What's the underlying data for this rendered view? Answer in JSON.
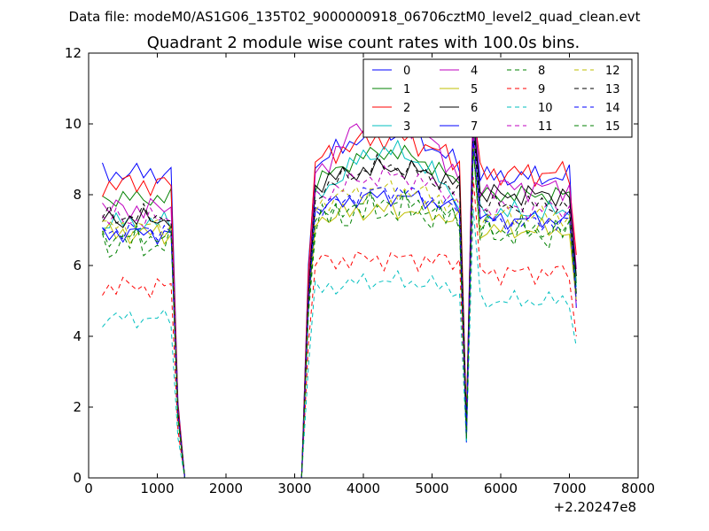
{
  "suptitle": "Data file: modeM0/AS1G06_135T02_9000000918_06706cztM0_level2_quad_clean.evt",
  "chart_data": {
    "type": "line",
    "title": "Quadrant 2 module wise count rates with 100.0s bins.",
    "xlabel": "",
    "ylabel": "",
    "x_offset_label": "+2.20247e8",
    "xlim": [
      0,
      8000
    ],
    "ylim": [
      0,
      12
    ],
    "x_ticks": [
      0,
      1000,
      2000,
      3000,
      4000,
      5000,
      6000,
      7000,
      8000
    ],
    "x_tick_labels": [
      "0",
      "1000",
      "2000",
      "3000",
      "4000",
      "5000",
      "6000",
      "7000",
      "8000"
    ],
    "y_ticks": [
      0,
      2,
      4,
      6,
      8,
      10,
      12
    ],
    "y_tick_labels": [
      "0",
      "2",
      "4",
      "6",
      "8",
      "10",
      "12"
    ],
    "grid": false,
    "legend_position": "top-right",
    "legend_columns": 4,
    "segments": [
      {
        "start": 200,
        "end": 1200,
        "step": 100
      },
      {
        "start": 1300,
        "end": 1400,
        "step": 100
      },
      {
        "start": 1400,
        "end": 3100,
        "step": 100
      },
      {
        "start": 3200,
        "end": 3200,
        "step": 100
      },
      {
        "start": 3300,
        "end": 5400,
        "step": 100
      },
      {
        "start": 5500,
        "end": 5500,
        "step": 100
      },
      {
        "start": 5600,
        "end": 7100,
        "step": 100
      }
    ],
    "series": [
      {
        "name": "0",
        "color": "#0000ff",
        "dash": "solid",
        "base": 8.6,
        "peak": 9.9,
        "pre_dip": 8.8,
        "jitter": 0.35,
        "post_drop": 4.8,
        "spike": 10.6,
        "dip": 1.4
      },
      {
        "name": "1",
        "color": "#008000",
        "dash": "solid",
        "base": 7.9,
        "peak": 9.3,
        "pre_dip": 8.3,
        "jitter": 0.3,
        "post_drop": 5.5,
        "spike": 10.4,
        "dip": 1.6
      },
      {
        "name": "2",
        "color": "#ff0000",
        "dash": "solid",
        "base": 8.3,
        "peak": 9.7,
        "pre_dip": 8.9,
        "jitter": 0.4,
        "post_drop": 6.3,
        "spike": 10.5,
        "dip": 1.7
      },
      {
        "name": "3",
        "color": "#00bfbf",
        "dash": "solid",
        "base": 7.2,
        "peak": 9.4,
        "pre_dip": 7.8,
        "jitter": 0.35,
        "post_drop": 5.4,
        "spike": 10.2,
        "dip": 1.4
      },
      {
        "name": "4",
        "color": "#bf00bf",
        "dash": "solid",
        "base": 7.6,
        "peak": 10.4,
        "pre_dip": 8.5,
        "jitter": 0.4,
        "post_drop": 5.9,
        "spike": 11.0,
        "dip": 1.5
      },
      {
        "name": "5",
        "color": "#bfbf00",
        "dash": "solid",
        "base": 6.9,
        "peak": 7.6,
        "pre_dip": 7.3,
        "jitter": 0.35,
        "post_drop": 5.0,
        "spike": 9.4,
        "dip": 1.2
      },
      {
        "name": "6",
        "color": "#000000",
        "dash": "solid",
        "base": 7.3,
        "peak": 8.8,
        "pre_dip": 8.3,
        "jitter": 0.35,
        "post_drop": 5.7,
        "spike": 10.1,
        "dip": 1.5
      },
      {
        "name": "7",
        "color": "#0000ff",
        "dash": "solid",
        "base": 6.9,
        "peak": 8.0,
        "pre_dip": 7.6,
        "jitter": 0.3,
        "post_drop": 5.2,
        "spike": 9.8,
        "dip": 1.0
      },
      {
        "name": "8",
        "color": "#008000",
        "dash": "dashed",
        "base": 6.6,
        "peak": 7.6,
        "pre_dip": 7.2,
        "jitter": 0.6,
        "post_drop": 5.2,
        "spike": 9.3,
        "dip": 1.3
      },
      {
        "name": "9",
        "color": "#ff0000",
        "dash": "dashed",
        "base": 5.4,
        "peak": 6.2,
        "pre_dip": 6.1,
        "jitter": 0.35,
        "post_drop": 4.0,
        "spike": 8.5,
        "dip": 1.1
      },
      {
        "name": "10",
        "color": "#00bfbf",
        "dash": "dashed",
        "base": 4.5,
        "peak": 5.6,
        "pre_dip": 5.3,
        "jitter": 0.3,
        "post_drop": 3.7,
        "spike": 7.6,
        "dip": 1.0
      },
      {
        "name": "11",
        "color": "#bf00bf",
        "dash": "dashed",
        "base": 7.3,
        "peak": 8.6,
        "pre_dip": 7.9,
        "jitter": 0.35,
        "post_drop": 4.8,
        "spike": 9.7,
        "dip": 1.3
      },
      {
        "name": "12",
        "color": "#bfbf00",
        "dash": "dashed",
        "base": 7.1,
        "peak": 8.2,
        "pre_dip": 7.7,
        "jitter": 0.35,
        "post_drop": 5.0,
        "spike": 9.5,
        "dip": 1.2
      },
      {
        "name": "13",
        "color": "#000000",
        "dash": "dashed",
        "base": 7.4,
        "peak": 8.9,
        "pre_dip": 8.0,
        "jitter": 0.35,
        "post_drop": 5.2,
        "spike": 9.9,
        "dip": 1.4
      },
      {
        "name": "14",
        "color": "#0000ff",
        "dash": "dashed",
        "base": 7.0,
        "peak": 8.2,
        "pre_dip": 7.5,
        "jitter": 0.3,
        "post_drop": 5.0,
        "spike": 9.5,
        "dip": 1.2
      },
      {
        "name": "15",
        "color": "#008000",
        "dash": "dashed",
        "base": 6.8,
        "peak": 7.9,
        "pre_dip": 7.3,
        "jitter": 0.3,
        "post_drop": 5.1,
        "spike": 9.3,
        "dip": 1.1
      }
    ]
  }
}
